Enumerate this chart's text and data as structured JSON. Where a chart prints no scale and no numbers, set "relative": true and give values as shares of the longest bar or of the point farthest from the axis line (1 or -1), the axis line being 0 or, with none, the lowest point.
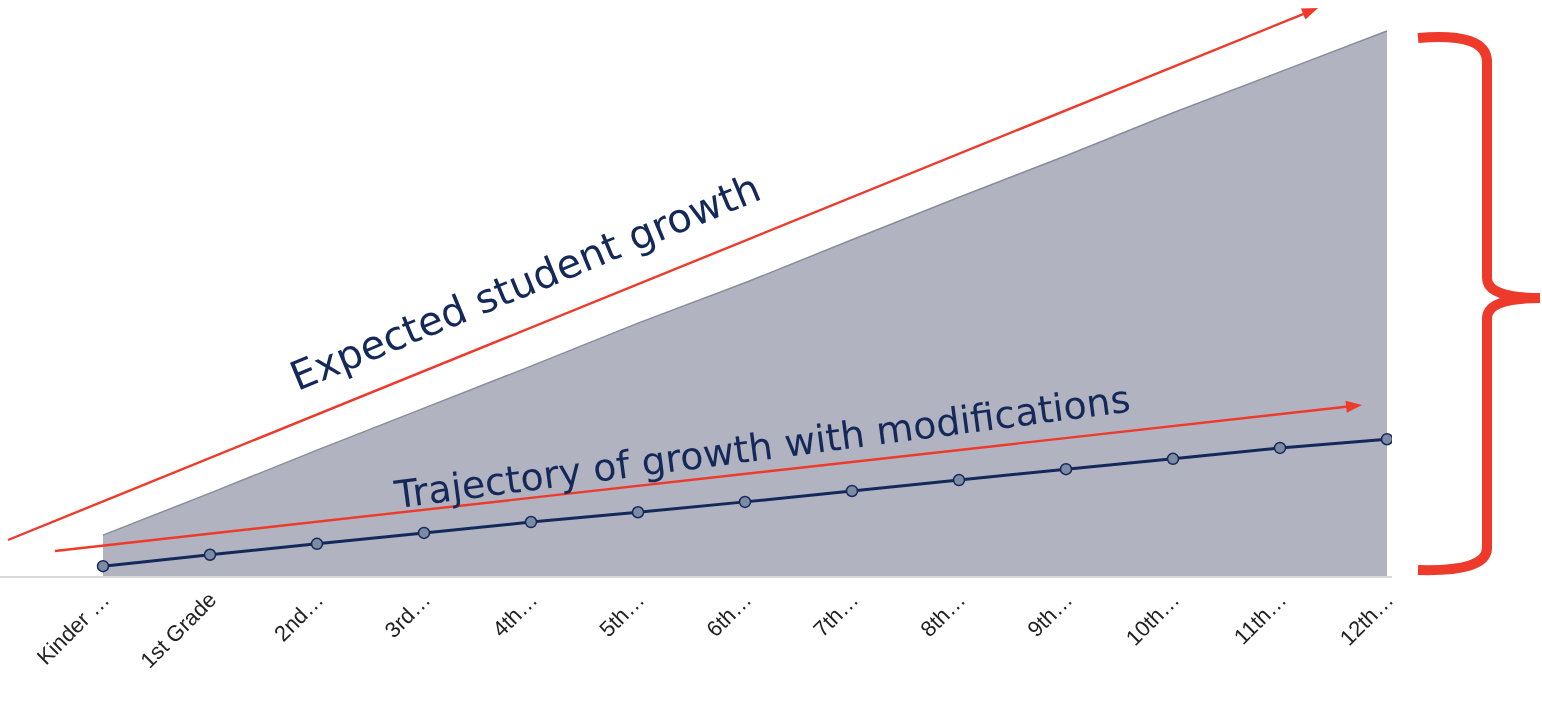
{
  "chart_data": {
    "type": "area",
    "relative": true,
    "categories": [
      "Kinder …",
      "1st Grade",
      "2nd…",
      "3rd…",
      "4th…",
      "5th…",
      "6th…",
      "7th…",
      "8th…",
      "9th…",
      "10th…",
      "11th…",
      "12th…"
    ],
    "series": [
      {
        "color": "#b1b4c0",
        "values": [
          0.075,
          0.152,
          0.231,
          0.308,
          0.385,
          0.464,
          0.538,
          0.617,
          0.695,
          0.771,
          0.85,
          0.925,
          1
        ]
      },
      {
        "type": "line",
        "color": "#14285a",
        "marker": "circle",
        "values": [
          0.018,
          0.039,
          0.059,
          0.079,
          0.099,
          0.117,
          0.136,
          0.156,
          0.176,
          0.196,
          0.215,
          0.235,
          0.251
        ]
      }
    ],
    "annotations": [
      "Expected student growth",
      "Trajectory of growth with modifications"
    ]
  }
}
